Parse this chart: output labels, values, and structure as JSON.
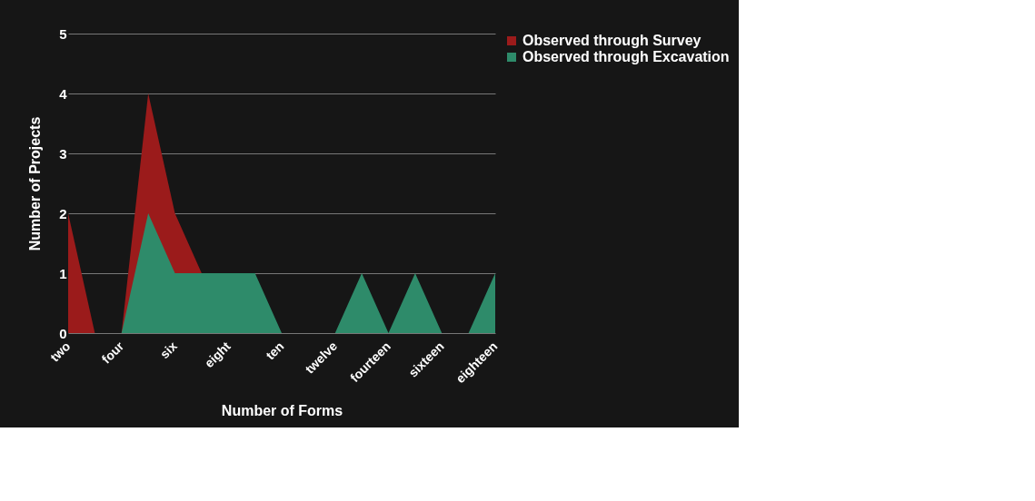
{
  "chart_data": {
    "type": "area",
    "xlabel": "Number of Forms",
    "ylabel": "Number of Projects",
    "categories": [
      "two",
      null,
      "four",
      null,
      "six",
      null,
      "eight",
      null,
      "ten",
      null,
      "twelve",
      null,
      "fourteen",
      null,
      "sixteen",
      null,
      "eighteen"
    ],
    "series": [
      {
        "name": "Observed through Survey",
        "color": "#9b1b1b",
        "values": [
          2,
          0,
          0,
          4,
          2,
          1,
          0,
          0,
          0,
          0,
          0,
          0,
          0,
          0,
          0,
          0,
          0
        ]
      },
      {
        "name": "Observed through Excavation",
        "color": "#2e8b6a",
        "values": [
          0,
          0,
          0,
          2,
          1,
          1,
          1,
          1,
          0,
          0,
          0,
          1,
          0,
          1,
          0,
          0,
          1
        ]
      }
    ],
    "ylim": [
      0,
      5
    ],
    "yticks": [
      0,
      1,
      2,
      3,
      4,
      5
    ],
    "grid": "y",
    "legend": "right"
  }
}
